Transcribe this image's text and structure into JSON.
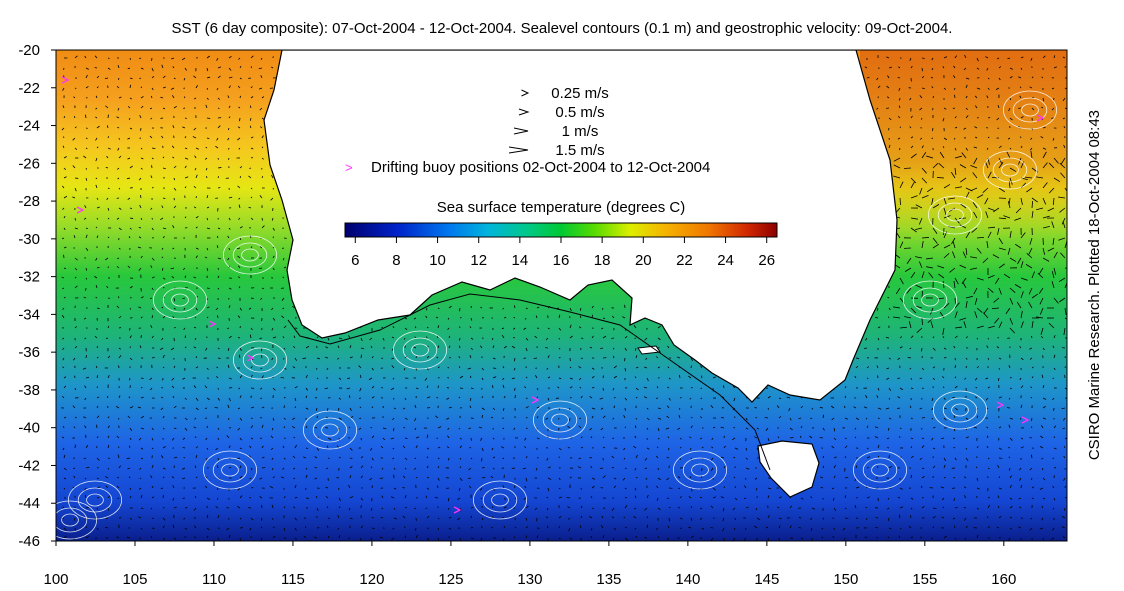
{
  "title": "SST (6 day composite): 07-Oct-2004 - 12-Oct-2004. Sealevel contours (0.1 m) and geostrophic velocity: 09-Oct-2004.",
  "credit": "CSIRO Marine Research. Plotted 18-Oct-2004 08:43",
  "map": {
    "lon_range": [
      100,
      164
    ],
    "lat_range": [
      -46,
      -20
    ],
    "x_ticks": [
      100,
      105,
      110,
      115,
      120,
      125,
      130,
      135,
      140,
      145,
      150,
      155,
      160
    ],
    "y_ticks": [
      -20,
      -22,
      -24,
      -26,
      -28,
      -30,
      -32,
      -34,
      -36,
      -38,
      -40,
      -42,
      -44,
      -46
    ],
    "land_color": "#ffffff",
    "contour_color": "#ffffff",
    "vector_color": "#000000",
    "buoy_color": "#ff33ff"
  },
  "legend": {
    "velocity_scale": [
      {
        "speed": 0.25,
        "label": "0.25 m/s"
      },
      {
        "speed": 0.5,
        "label": "0.5 m/s"
      },
      {
        "speed": 1,
        "label": "1 m/s"
      },
      {
        "speed": 1.5,
        "label": "1.5 m/s"
      }
    ],
    "buoy_label": "Drifting buoy positions 02-Oct-2004 to 12-Oct-2004",
    "colorbar_title": "Sea surface temperature (degrees C)",
    "colorbar_ticks": [
      6,
      8,
      10,
      12,
      14,
      16,
      18,
      20,
      22,
      24,
      26
    ],
    "colorbar_range": [
      5.5,
      26.5
    ]
  }
}
